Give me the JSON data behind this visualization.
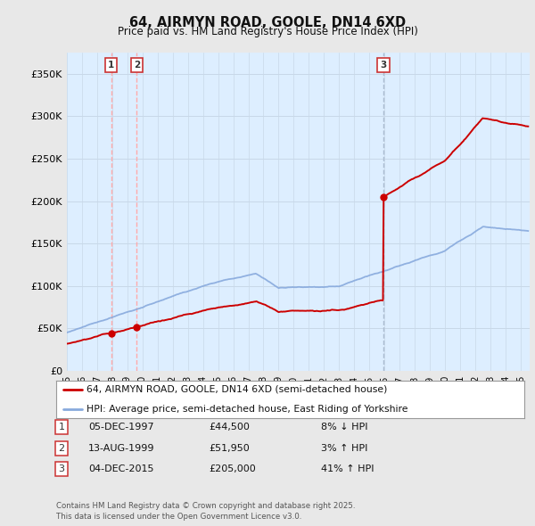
{
  "title": "64, AIRMYN ROAD, GOOLE, DN14 6XD",
  "subtitle": "Price paid vs. HM Land Registry's House Price Index (HPI)",
  "legend_line1": "64, AIRMYN ROAD, GOOLE, DN14 6XD (semi-detached house)",
  "legend_line2": "HPI: Average price, semi-detached house, East Riding of Yorkshire",
  "footnote": "Contains HM Land Registry data © Crown copyright and database right 2025.\nThis data is licensed under the Open Government Licence v3.0.",
  "transactions": [
    {
      "num": 1,
      "date": "05-DEC-1997",
      "price": "£44,500",
      "pct": "8% ↓ HPI",
      "year": 1997.92
    },
    {
      "num": 2,
      "date": "13-AUG-1999",
      "price": "£51,950",
      "pct": "3% ↑ HPI",
      "year": 1999.62
    },
    {
      "num": 3,
      "date": "04-DEC-2015",
      "price": "£205,000",
      "pct": "41% ↑ HPI",
      "year": 2015.92
    }
  ],
  "ylim": [
    0,
    375000
  ],
  "yticks": [
    0,
    50000,
    100000,
    150000,
    200000,
    250000,
    300000,
    350000
  ],
  "ytick_labels": [
    "£0",
    "£50K",
    "£100K",
    "£150K",
    "£200K",
    "£250K",
    "£300K",
    "£350K"
  ],
  "price_color": "#cc0000",
  "hpi_color": "#88aadd",
  "vline_color_dashed": "#ffaaaa",
  "vline_color_solid": "#aabbd0",
  "shading_color": "#ddeeff",
  "background_color": "#e8e8e8",
  "plot_bg_color": "#ddeeff",
  "grid_color": "#c8d8e8"
}
